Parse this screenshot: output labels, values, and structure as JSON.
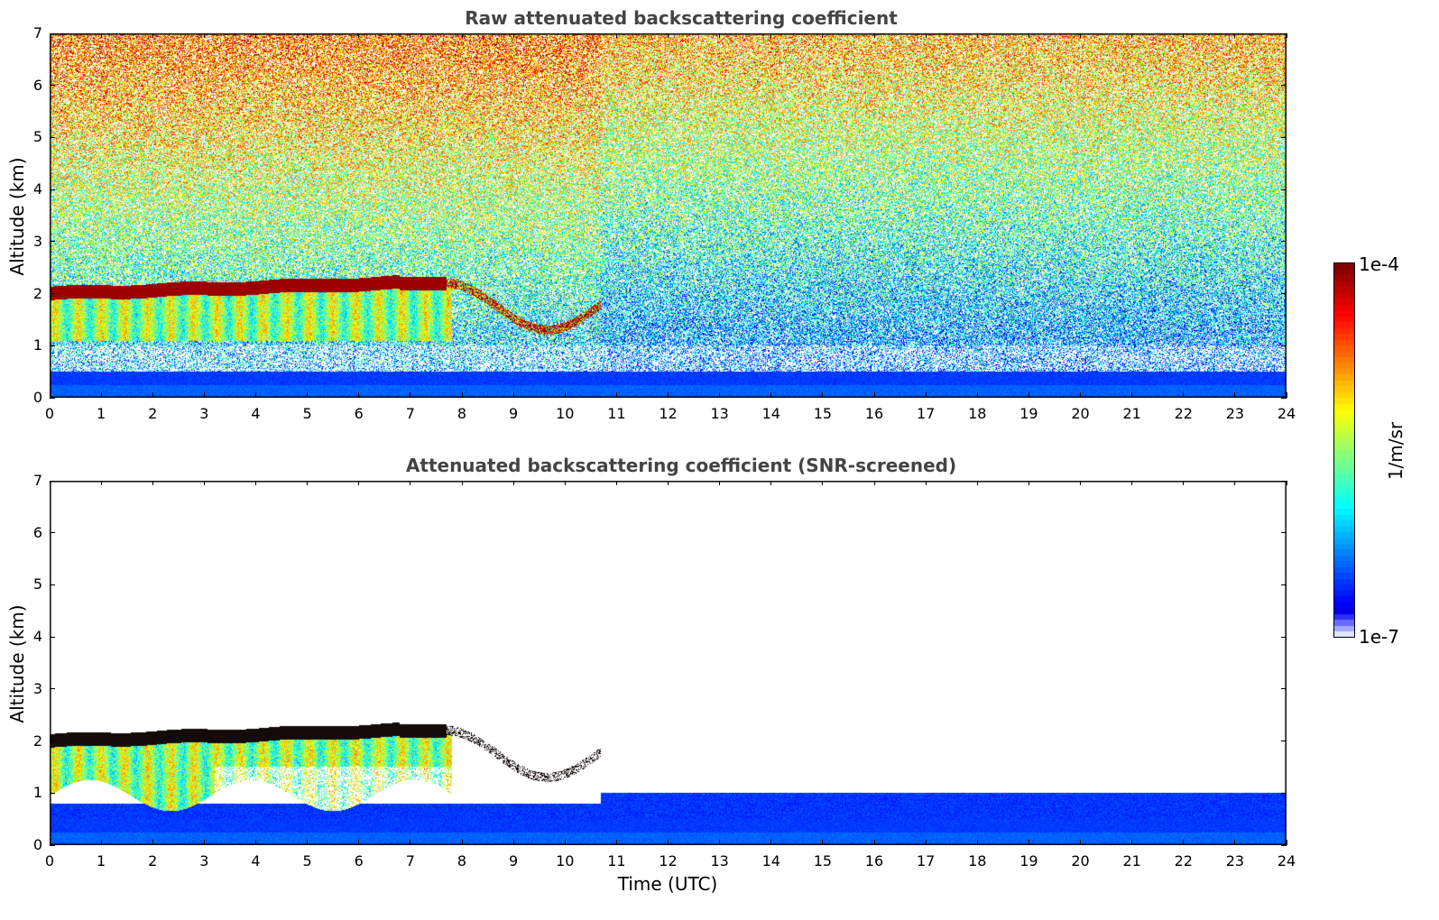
{
  "chart_data": [
    {
      "type": "heatmap",
      "title": "Raw attenuated backscattering coefficient",
      "xlabel": "",
      "ylabel": "Altitude (km)",
      "xlim": [
        0,
        24
      ],
      "ylim": [
        0,
        7
      ],
      "xticks": [
        "0",
        "1",
        "2",
        "3",
        "4",
        "5",
        "6",
        "7",
        "8",
        "9",
        "10",
        "11",
        "12",
        "13",
        "14",
        "15",
        "16",
        "17",
        "18",
        "19",
        "20",
        "21",
        "22",
        "23",
        "24"
      ],
      "yticks": [
        "0",
        "1",
        "2",
        "3",
        "4",
        "5",
        "6",
        "7"
      ],
      "features": [
        {
          "name": "cloud base layer",
          "time_range": [
            0,
            7.7
          ],
          "altitude_km": [
            2.0,
            2.25
          ],
          "level": "1e-4"
        },
        {
          "name": "broken cloud",
          "time_range": [
            7.7,
            10.7
          ],
          "altitude_km": [
            1.3,
            2.2
          ],
          "level": "1e-4"
        },
        {
          "name": "boundary layer",
          "time_range": [
            0,
            24
          ],
          "altitude_km": [
            0,
            0.5
          ],
          "level": "low"
        }
      ]
    },
    {
      "type": "heatmap",
      "title": "Attenuated backscattering coefficient (SNR-screened)",
      "xlabel": "Time (UTC)",
      "ylabel": "Altitude (km)",
      "xlim": [
        0,
        24
      ],
      "ylim": [
        0,
        7
      ],
      "xticks": [
        "0",
        "1",
        "2",
        "3",
        "4",
        "5",
        "6",
        "7",
        "8",
        "9",
        "10",
        "11",
        "12",
        "13",
        "14",
        "15",
        "16",
        "17",
        "18",
        "19",
        "20",
        "21",
        "22",
        "23",
        "24"
      ],
      "yticks": [
        "0",
        "1",
        "2",
        "3",
        "4",
        "5",
        "6",
        "7"
      ],
      "features": [
        {
          "name": "cloud base layer",
          "time_range": [
            0,
            7.7
          ],
          "altitude_km": [
            2.0,
            2.3
          ],
          "level": "saturated"
        },
        {
          "name": "broken cloud",
          "time_range": [
            7.7,
            10.7
          ],
          "altitude_km": [
            1.1,
            2.2
          ],
          "level": "saturated"
        },
        {
          "name": "boundary layer",
          "time_range": [
            0,
            24
          ],
          "altitude_km": [
            0,
            1.0
          ],
          "level": "low"
        }
      ]
    }
  ],
  "colorbar": {
    "label": "1/m/sr",
    "max_label": "1e-4",
    "min_label": "1e-7",
    "colormap": "jet"
  }
}
